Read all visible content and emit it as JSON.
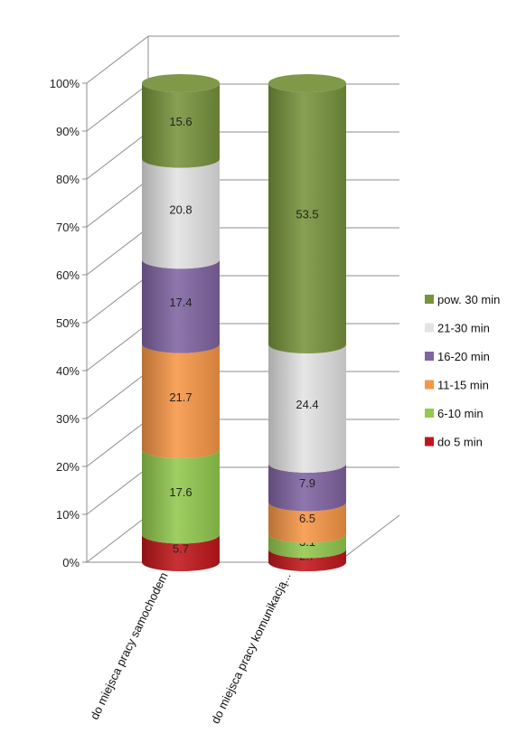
{
  "chart_data": {
    "type": "bar",
    "stacked": true,
    "percent_stacked": true,
    "three_d": true,
    "shape": "cylinder",
    "categories": [
      "do miejsca pracy samochodem",
      "do miejsca pracy komunikacją..."
    ],
    "series": [
      {
        "name": "do 5 min",
        "values": [
          5.7,
          2.7
        ],
        "color": "#c0161b"
      },
      {
        "name": "6-10 min",
        "values": [
          17.6,
          3.1
        ],
        "color": "#92c94e"
      },
      {
        "name": "11-15 min",
        "values": [
          21.7,
          6.5
        ],
        "color": "#f79646"
      },
      {
        "name": "16-20 min",
        "values": [
          17.4,
          7.9
        ],
        "color": "#8064a2"
      },
      {
        "name": "21-30 min",
        "values": [
          20.8,
          24.4
        ],
        "color": "#e3e3e3"
      },
      {
        "name": "pow. 30 min",
        "values": [
          15.6,
          53.5
        ],
        "color": "#77933c"
      }
    ],
    "y_ticks": [
      "0%",
      "10%",
      "20%",
      "30%",
      "40%",
      "50%",
      "60%",
      "70%",
      "80%",
      "90%",
      "100%"
    ],
    "ylim": [
      0,
      100
    ],
    "grid": true,
    "legend_position": "right",
    "legend_order": [
      "pow. 30 min",
      "21-30 min",
      "16-20 min",
      "11-15 min",
      "6-10 min",
      "do 5 min"
    ],
    "title": "",
    "xlabel": "",
    "ylabel": ""
  }
}
